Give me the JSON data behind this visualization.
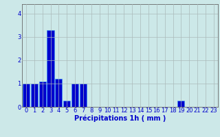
{
  "values": [
    1.0,
    1.0,
    1.1,
    3.3,
    1.2,
    0.25,
    1.0,
    1.0,
    0,
    0,
    0,
    0,
    0,
    0,
    0,
    0,
    0,
    0,
    0,
    0.25,
    0,
    0,
    0,
    0
  ],
  "xlabel": "Précipitations 1h ( mm )",
  "ylim": [
    0,
    4.4
  ],
  "yticks": [
    0,
    1,
    2,
    3,
    4
  ],
  "bar_color": "#0000cc",
  "bar_edge_color": "#3399ff",
  "background_color": "#cce8e8",
  "grid_color": "#aababa",
  "tick_label_color": "#0000cc",
  "xlabel_color": "#0000cc",
  "xlabel_fontsize": 7.0,
  "tick_fontsize": 6.0,
  "ylabel_fontsize": 7.0
}
